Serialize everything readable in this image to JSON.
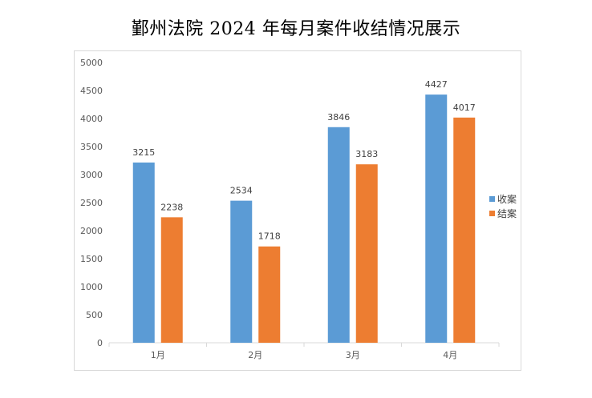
{
  "chart_data": {
    "type": "bar",
    "title": "鄞州法院 2024 年每月案件收结情况展示",
    "xlabel": "",
    "ylabel": "",
    "categories": [
      "1月",
      "2月",
      "3月",
      "4月"
    ],
    "series": [
      {
        "name": "收案",
        "values": [
          3215,
          2534,
          3846,
          4427
        ],
        "color": "#5b9bd5"
      },
      {
        "name": "结案",
        "values": [
          2238,
          1718,
          3183,
          4017
        ],
        "color": "#ed7d31"
      }
    ],
    "ylim": [
      0,
      5000
    ],
    "yticks": [
      0,
      500,
      1000,
      1500,
      2000,
      2500,
      3000,
      3500,
      4000,
      4500,
      5000
    ],
    "grid": false,
    "legend": "right",
    "data_labels": true
  }
}
